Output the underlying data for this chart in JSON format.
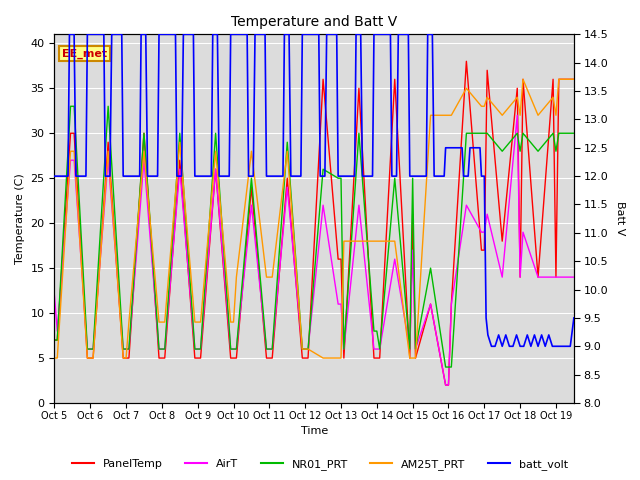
{
  "title": "Temperature and Batt V",
  "xlabel": "Time",
  "ylabel_left": "Temperature (C)",
  "ylabel_right": "Batt V",
  "annotation": "EE_met",
  "ylim_left": [
    0,
    41
  ],
  "ylim_right": [
    8.0,
    14.5
  ],
  "xlim": [
    0,
    14.5
  ],
  "legend_labels": [
    "PanelTemp",
    "AirT",
    "NR01_PRT",
    "AM25T_PRT",
    "batt_volt"
  ],
  "legend_colors": [
    "#ff0000",
    "#ff00ff",
    "#00bb00",
    "#ff9900",
    "#0000ff"
  ],
  "background_color": "#dcdcdc",
  "grid_color": "#ffffff",
  "x_tick_positions": [
    0,
    1,
    2,
    3,
    4,
    5,
    6,
    7,
    8,
    9,
    10,
    11,
    12,
    13,
    14
  ],
  "x_tick_labels": [
    "Oct 5",
    "Oct 6",
    "Oct 7",
    "Oct 8",
    "Oct 9",
    "Oct 10",
    "Oct 11",
    "Oct 12",
    "Oct 13",
    "Oct 14",
    "Oct 15",
    "Oct 16",
    "Oct 17",
    "Oct 18",
    "Oct 19"
  ],
  "y_ticks_left": [
    0,
    5,
    10,
    15,
    20,
    25,
    30,
    35,
    40
  ],
  "y_ticks_right": [
    8.0,
    8.5,
    9.0,
    9.5,
    10.0,
    10.5,
    11.0,
    11.5,
    12.0,
    12.5,
    13.0,
    13.5,
    14.0,
    14.5
  ],
  "panel_temp_x": [
    0.0,
    0.08,
    0.45,
    0.55,
    0.92,
    1.0,
    1.08,
    1.5,
    1.92,
    2.0,
    2.08,
    2.5,
    2.92,
    3.0,
    3.08,
    3.5,
    3.92,
    4.0,
    4.08,
    4.5,
    4.92,
    5.0,
    5.08,
    5.5,
    5.92,
    6.0,
    6.08,
    6.5,
    6.92,
    7.0,
    7.08,
    7.5,
    7.92,
    8.0,
    8.08,
    8.5,
    8.92,
    9.0,
    9.08,
    9.5,
    9.92,
    10.0,
    10.08,
    10.5,
    10.92,
    11.0,
    11.08,
    11.5,
    11.92,
    12.0,
    12.08,
    12.5,
    12.92,
    13.0,
    13.08,
    13.5,
    13.92,
    14.0,
    14.08,
    14.5
  ],
  "panel_temp_y": [
    7.0,
    7.0,
    30.0,
    30.0,
    5.0,
    5.0,
    5.0,
    29.0,
    5.0,
    5.0,
    5.0,
    30.0,
    5.0,
    5.0,
    5.0,
    27.0,
    5.0,
    5.0,
    5.0,
    26.0,
    5.0,
    5.0,
    5.0,
    24.0,
    5.0,
    5.0,
    5.0,
    25.0,
    5.0,
    5.0,
    5.0,
    36.0,
    16.0,
    16.0,
    5.0,
    35.0,
    5.0,
    5.0,
    5.0,
    36.0,
    5.0,
    21.0,
    5.0,
    11.0,
    2.0,
    2.0,
    11.0,
    38.0,
    17.0,
    17.0,
    37.0,
    18.0,
    35.0,
    14.0,
    36.0,
    14.0,
    36.0,
    14.0,
    36.0,
    36.0
  ],
  "air_t_x": [
    0.0,
    0.08,
    0.45,
    0.55,
    0.92,
    1.0,
    1.08,
    1.5,
    1.92,
    2.0,
    2.08,
    2.5,
    2.92,
    3.0,
    3.08,
    3.5,
    3.92,
    4.0,
    4.08,
    4.5,
    4.92,
    5.0,
    5.08,
    5.5,
    5.92,
    6.0,
    6.08,
    6.5,
    6.92,
    7.0,
    7.08,
    7.5,
    7.92,
    8.0,
    8.08,
    8.5,
    8.92,
    9.0,
    9.08,
    9.5,
    9.92,
    10.0,
    10.08,
    10.5,
    10.92,
    11.0,
    11.08,
    11.5,
    11.92,
    12.0,
    12.08,
    12.5,
    12.92,
    13.0,
    13.08,
    13.5,
    13.92,
    14.0,
    14.08,
    14.5
  ],
  "air_t_y": [
    12.0,
    8.0,
    27.0,
    27.0,
    6.0,
    6.0,
    6.0,
    27.0,
    6.0,
    6.0,
    6.0,
    27.0,
    6.0,
    6.0,
    6.0,
    26.0,
    6.0,
    6.0,
    6.0,
    26.0,
    6.0,
    6.0,
    6.0,
    22.0,
    6.0,
    6.0,
    6.0,
    24.0,
    6.0,
    6.0,
    6.0,
    22.0,
    11.0,
    11.0,
    6.0,
    22.0,
    6.0,
    6.0,
    6.0,
    16.0,
    6.0,
    17.0,
    6.0,
    11.0,
    2.0,
    2.0,
    11.0,
    22.0,
    19.0,
    19.0,
    21.0,
    14.0,
    32.0,
    14.0,
    19.0,
    14.0,
    14.0,
    14.0,
    14.0,
    14.0
  ],
  "nr01_x": [
    0.0,
    0.08,
    0.45,
    0.55,
    0.92,
    1.0,
    1.08,
    1.5,
    1.92,
    2.0,
    2.08,
    2.5,
    2.92,
    3.0,
    3.08,
    3.5,
    3.92,
    4.0,
    4.08,
    4.5,
    4.92,
    5.0,
    5.08,
    5.5,
    5.92,
    6.0,
    6.08,
    6.5,
    6.92,
    7.0,
    7.08,
    7.5,
    7.92,
    8.0,
    8.08,
    8.5,
    8.92,
    9.0,
    9.08,
    9.5,
    9.92,
    10.0,
    10.08,
    10.5,
    10.92,
    11.0,
    11.08,
    11.5,
    11.92,
    12.0,
    12.08,
    12.5,
    12.92,
    13.0,
    13.08,
    13.5,
    13.92,
    14.0,
    14.08,
    14.5
  ],
  "nr01_y": [
    7.0,
    7.0,
    33.0,
    33.0,
    6.0,
    6.0,
    6.0,
    33.0,
    6.0,
    6.0,
    6.0,
    30.0,
    6.0,
    6.0,
    6.0,
    30.0,
    6.0,
    6.0,
    6.0,
    30.0,
    6.0,
    6.0,
    6.0,
    25.0,
    6.0,
    6.0,
    6.0,
    29.0,
    6.0,
    6.0,
    6.0,
    26.0,
    25.0,
    25.0,
    6.0,
    30.0,
    8.0,
    8.0,
    6.0,
    25.0,
    6.0,
    25.0,
    6.0,
    15.0,
    4.0,
    4.0,
    4.0,
    30.0,
    30.0,
    30.0,
    30.0,
    28.0,
    30.0,
    28.0,
    30.0,
    28.0,
    30.0,
    28.0,
    30.0,
    30.0
  ],
  "am25_x": [
    0.0,
    0.08,
    0.45,
    0.55,
    0.92,
    1.0,
    1.08,
    1.5,
    1.92,
    2.0,
    2.08,
    2.5,
    2.92,
    3.0,
    3.08,
    3.5,
    3.92,
    4.0,
    4.08,
    4.5,
    4.92,
    5.0,
    5.08,
    5.5,
    5.92,
    6.0,
    6.08,
    6.5,
    6.92,
    7.0,
    7.08,
    7.5,
    7.92,
    8.0,
    8.08,
    8.5,
    8.92,
    9.0,
    9.08,
    9.5,
    9.92,
    10.0,
    10.08,
    10.5,
    10.92,
    11.0,
    11.08,
    11.5,
    11.92,
    12.0,
    12.08,
    12.5,
    12.92,
    13.0,
    13.08,
    13.5,
    13.92,
    14.0,
    14.08,
    14.5
  ],
  "am25_y": [
    5.0,
    5.0,
    28.0,
    28.0,
    5.0,
    5.0,
    5.0,
    28.0,
    5.0,
    5.0,
    9.0,
    28.0,
    9.0,
    9.0,
    9.0,
    29.0,
    9.0,
    9.0,
    9.0,
    28.0,
    9.0,
    9.0,
    14.0,
    28.0,
    14.0,
    14.0,
    14.0,
    28.0,
    6.0,
    6.0,
    6.0,
    5.0,
    5.0,
    5.0,
    18.0,
    18.0,
    18.0,
    18.0,
    18.0,
    18.0,
    5.0,
    5.0,
    5.0,
    32.0,
    32.0,
    32.0,
    32.0,
    35.0,
    33.0,
    33.0,
    34.0,
    32.0,
    34.0,
    32.0,
    36.0,
    32.0,
    34.0,
    32.0,
    36.0,
    36.0
  ],
  "bv_x": [
    0.0,
    0.05,
    0.38,
    0.42,
    0.55,
    0.6,
    0.88,
    0.92,
    1.38,
    1.42,
    1.55,
    1.6,
    1.88,
    1.92,
    2.38,
    2.42,
    2.55,
    2.6,
    2.88,
    2.92,
    3.38,
    3.42,
    3.55,
    3.6,
    3.88,
    3.92,
    4.38,
    4.42,
    4.55,
    4.6,
    4.88,
    4.92,
    5.38,
    5.42,
    5.55,
    5.6,
    5.88,
    5.92,
    6.38,
    6.42,
    6.55,
    6.6,
    6.88,
    6.92,
    7.38,
    7.42,
    7.55,
    7.6,
    7.88,
    7.92,
    8.38,
    8.42,
    8.55,
    8.6,
    8.88,
    8.92,
    9.38,
    9.42,
    9.55,
    9.6,
    9.88,
    9.92,
    10.38,
    10.42,
    10.55,
    10.6,
    10.88,
    10.92,
    11.38,
    11.42,
    11.55,
    11.6,
    11.88,
    11.92,
    12.0,
    12.05,
    12.1,
    12.2,
    12.3,
    12.4,
    12.5,
    12.6,
    12.7,
    12.8,
    12.9,
    13.0,
    13.1,
    13.2,
    13.3,
    13.4,
    13.5,
    13.6,
    13.7,
    13.8,
    13.9,
    14.0,
    14.1,
    14.2,
    14.3,
    14.4,
    14.5
  ],
  "bv_y": [
    12.0,
    12.0,
    12.0,
    14.5,
    14.5,
    12.0,
    12.0,
    14.5,
    14.5,
    12.0,
    12.0,
    14.5,
    14.5,
    12.0,
    12.0,
    14.5,
    14.5,
    12.0,
    12.0,
    14.5,
    14.5,
    12.0,
    12.0,
    14.5,
    14.5,
    12.0,
    12.0,
    14.5,
    14.5,
    12.0,
    12.0,
    14.5,
    14.5,
    12.0,
    12.0,
    14.5,
    14.5,
    12.0,
    12.0,
    14.5,
    14.5,
    12.0,
    12.0,
    14.5,
    14.5,
    12.0,
    12.0,
    14.5,
    14.5,
    12.0,
    12.0,
    14.5,
    14.5,
    12.0,
    12.0,
    14.5,
    14.5,
    12.0,
    12.0,
    14.5,
    14.5,
    12.0,
    12.0,
    14.5,
    14.5,
    12.0,
    12.0,
    12.5,
    12.5,
    12.0,
    12.0,
    12.5,
    12.5,
    12.0,
    12.0,
    9.5,
    9.2,
    9.0,
    9.0,
    9.2,
    9.0,
    9.2,
    9.0,
    9.0,
    9.2,
    9.0,
    9.0,
    9.2,
    9.0,
    9.2,
    9.0,
    9.2,
    9.0,
    9.2,
    9.0,
    9.0,
    9.0,
    9.0,
    9.0,
    9.0,
    9.5
  ]
}
